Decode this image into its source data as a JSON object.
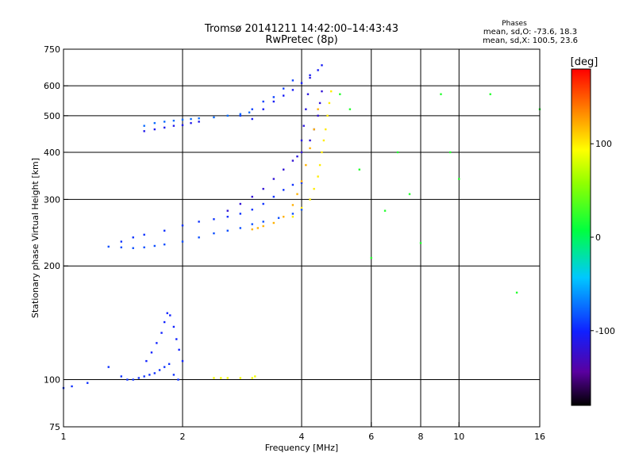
{
  "chart_data": {
    "type": "scatter",
    "title": "Tromsø 20141211 14:42:00–14:43:43",
    "subtitle": "RwPretec (8p)",
    "xlabel": "Frequency [MHz]",
    "ylabel": "Stationary phase Virtual Height [km]",
    "x_scale": "log",
    "y_scale": "log",
    "xlim": [
      1,
      16
    ],
    "ylim": [
      75,
      750
    ],
    "x_ticks": [
      1,
      2,
      4,
      6,
      8,
      10,
      16
    ],
    "x_tick_labels": [
      "1",
      "2",
      "4",
      "6",
      "8",
      "10",
      "16"
    ],
    "x_gridlines": [
      2,
      4,
      6,
      8,
      10
    ],
    "y_ticks": [
      75,
      100,
      200,
      300,
      400,
      500,
      600,
      750
    ],
    "y_tick_labels": [
      "75",
      "100",
      "200",
      "300",
      "400",
      "500",
      "600",
      "750"
    ],
    "y_gridlines": [
      100,
      200,
      300,
      400,
      500,
      600
    ],
    "grid": true,
    "stats": {
      "heading": "Phases",
      "line_o": "mean, sd,O: -73.6, 18.3",
      "line_x": "mean, sd,X: 100.5, 23.6"
    },
    "colorbar": {
      "label": "[deg]",
      "range": [
        -180,
        180
      ],
      "ticks": [
        100,
        0,
        -100
      ],
      "tick_labels": [
        "100",
        "0",
        "-100"
      ],
      "colormap": "rainbow"
    },
    "traces": [
      {
        "x": [
          1.0,
          1.05,
          1.15,
          1.3,
          1.4,
          1.45,
          1.5,
          1.55,
          1.6,
          1.65,
          1.7,
          1.75,
          1.8,
          1.85,
          1.9,
          1.95
        ],
        "y": [
          95,
          96,
          98,
          108,
          102,
          100,
          100,
          101,
          102,
          103,
          104,
          106,
          108,
          110,
          103,
          100
        ],
        "phase": -95
      },
      {
        "x": [
          1.62,
          1.67,
          1.72,
          1.77,
          1.8,
          1.83,
          1.86,
          1.9,
          1.93,
          1.96,
          2.0
        ],
        "y": [
          112,
          118,
          125,
          133,
          142,
          150,
          148,
          138,
          128,
          120,
          112
        ],
        "phase": -100
      },
      {
        "x": [
          1.6,
          1.7,
          1.8,
          1.9,
          2.0,
          2.1,
          2.2,
          2.4,
          2.6,
          2.8,
          2.95
        ],
        "y": [
          470,
          478,
          482,
          485,
          488,
          490,
          492,
          495,
          500,
          505,
          510
        ],
        "phase": -75
      },
      {
        "x": [
          1.6,
          1.7,
          1.8,
          1.9,
          2.0,
          2.1,
          2.2
        ],
        "y": [
          455,
          460,
          465,
          470,
          472,
          478,
          482
        ],
        "phase": -110
      },
      {
        "x": [
          1.3,
          1.4,
          1.5,
          1.6,
          1.7,
          1.8,
          2.0,
          2.2,
          2.4,
          2.6,
          2.8,
          3.0,
          3.2,
          3.5,
          3.8,
          4.0
        ],
        "y": [
          225,
          224,
          223,
          224,
          226,
          228,
          232,
          238,
          244,
          248,
          252,
          258,
          262,
          268,
          275,
          282
        ],
        "phase": -85
      },
      {
        "x": [
          1.4,
          1.5,
          1.6,
          1.8,
          2.0,
          2.2,
          2.4,
          2.6,
          2.8,
          3.0,
          3.2,
          3.4,
          3.6,
          3.8,
          4.0
        ],
        "y": [
          232,
          238,
          242,
          248,
          256,
          262,
          266,
          270,
          275,
          282,
          292,
          305,
          318,
          328,
          332
        ],
        "phase": -95
      },
      {
        "x": [
          2.6,
          2.8,
          3.0,
          3.2,
          3.4,
          3.6,
          3.8,
          4.0,
          4.2,
          4.3,
          4.4,
          4.45,
          4.5
        ],
        "y": [
          280,
          292,
          305,
          320,
          340,
          360,
          380,
          400,
          430,
          460,
          500,
          540,
          580
        ],
        "phase": -120
      },
      {
        "x": [
          3.0,
          3.1,
          3.2,
          3.4,
          3.6,
          3.8,
          3.9,
          4.0,
          4.1,
          4.2,
          4.3,
          4.4
        ],
        "y": [
          250,
          252,
          255,
          260,
          270,
          290,
          310,
          335,
          370,
          410,
          460,
          520
        ],
        "phase": 120
      },
      {
        "x": [
          3.8,
          4.0,
          4.2,
          4.3,
          4.4,
          4.45,
          4.5,
          4.55,
          4.6,
          4.65,
          4.7,
          4.75
        ],
        "y": [
          270,
          285,
          300,
          320,
          345,
          370,
          400,
          430,
          460,
          500,
          540,
          580
        ],
        "phase": 100
      },
      {
        "x": [
          3.0,
          3.2,
          3.4,
          3.6,
          3.8,
          4.0,
          4.2,
          4.4,
          4.5
        ],
        "y": [
          490,
          520,
          545,
          565,
          585,
          610,
          640,
          660,
          680
        ],
        "phase": -105
      },
      {
        "x": [
          2.8,
          3.0,
          3.2,
          3.4,
          3.6,
          3.8
        ],
        "y": [
          500,
          520,
          545,
          560,
          590,
          620
        ],
        "phase": -90
      },
      {
        "x": [
          3.9,
          4.0,
          4.05,
          4.1,
          4.15,
          4.2
        ],
        "y": [
          390,
          430,
          470,
          520,
          570,
          630
        ],
        "phase": -115
      },
      {
        "x": [
          2.4,
          2.5,
          2.6,
          2.8,
          3.0,
          3.05
        ],
        "y": [
          101,
          101,
          101,
          101,
          101,
          102
        ],
        "phase": 90
      },
      {
        "x": [
          5.0,
          5.3,
          5.6,
          6.0,
          6.5,
          7.0,
          7.5,
          8.0,
          9.0,
          9.5,
          10.0,
          12.0,
          14.0,
          16.0
        ],
        "y": [
          570,
          520,
          360,
          210,
          280,
          400,
          310,
          230,
          570,
          400,
          340,
          570,
          170,
          520
        ],
        "phase": 20
      }
    ]
  }
}
